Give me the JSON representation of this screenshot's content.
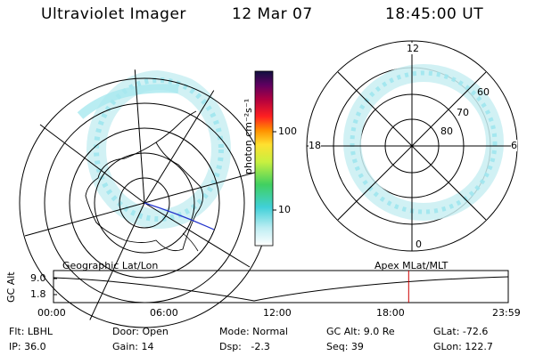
{
  "header": {
    "title": "Ultraviolet Imager",
    "date": "12 Mar 07",
    "time": "18:45:00 UT"
  },
  "colorbar": {
    "unit_label": "photon cm⁻²s⁻¹",
    "ticks": [
      "100",
      "10"
    ]
  },
  "polar_plot": {
    "mlt_labels": [
      "12",
      "18",
      "6",
      "0"
    ],
    "lat_labels": [
      "60",
      "70",
      "80"
    ]
  },
  "timeline": {
    "left_title": "Geographic Lat/Lon",
    "right_title": "Apex MLat/MLT",
    "axis_label": "GC Alt",
    "y_ticks": [
      "9.0",
      "1.8"
    ],
    "x_ticks": [
      "00:00",
      "06:00",
      "12:00",
      "18:00",
      "23:59"
    ],
    "current_time_fraction": 0.781
  },
  "info": {
    "flt": "Flt: LBHL",
    "ip": "IP: 36.0",
    "door": "Door: Open",
    "gain": "Gain: 14",
    "mode": "Mode: Normal",
    "dsp": "Dsp:   -2.3",
    "gcalt": "GC Alt: 9.0 Re",
    "seq": "Seq: 39",
    "glat": "GLat: -72.6",
    "glon": "GLon: 122.7"
  },
  "colors": {
    "aurora": "#9ee6ee",
    "orbit_line": "#2233cc",
    "time_marker": "#cc0000"
  }
}
